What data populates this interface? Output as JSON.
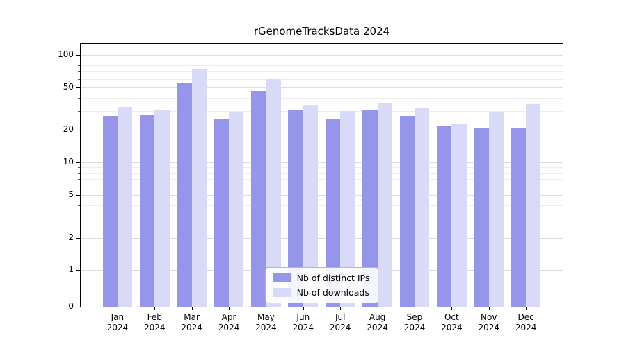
{
  "chart_data": {
    "type": "bar",
    "title": "rGenomeTracksData 2024",
    "categories": [
      "Jan 2024",
      "Feb 2024",
      "Mar 2024",
      "Apr 2024",
      "May 2024",
      "Jun 2024",
      "Jul 2024",
      "Aug 2024",
      "Sep 2024",
      "Oct 2024",
      "Nov 2024",
      "Dec 2024"
    ],
    "series": [
      {
        "name": "Nb of distinct IPs",
        "color": "#9596ea",
        "values": [
          27,
          28,
          55,
          25,
          46,
          31,
          25,
          31,
          27,
          22,
          21,
          21
        ]
      },
      {
        "name": "Nb of downloads",
        "color": "#d9daf8",
        "values": [
          33,
          31,
          73,
          29,
          60,
          34,
          30,
          36,
          32,
          23,
          29,
          35
        ]
      }
    ],
    "yscale": "symlog",
    "linthresh": 1,
    "ylim": [
      0,
      127
    ],
    "yticks": [
      0,
      1,
      2,
      5,
      10,
      20,
      50,
      100
    ],
    "minor_yticks": [
      3,
      4,
      6,
      7,
      8,
      9,
      30,
      40,
      60,
      70,
      80,
      90
    ],
    "xlabel": "",
    "ylabel": "",
    "grid": true,
    "legend": {
      "position": "lower center"
    }
  }
}
